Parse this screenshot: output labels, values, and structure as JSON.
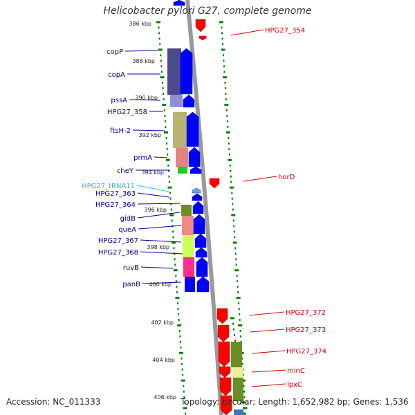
{
  "title": "Helicobacter pylori G27, complete genome",
  "footer": {
    "accession": "Accession: NC_011333",
    "topology": "Topology: circular; Length: 1,652,982 bp; Genes: 1,536"
  },
  "colors": {
    "plus_strand_arrow": "#0000ff",
    "minus_strand_arrow": "#ff0000",
    "trna_arrow": "#55aaff",
    "plus_label": "#00008b",
    "minus_label": "#cc0000",
    "trna_label": "#33bbee",
    "backbone": "#999999",
    "tick": "#008000"
  },
  "kbp_ticks": [
    "386 kbp",
    "388 kbp",
    "390 kbp",
    "392 kbp",
    "394 kbp",
    "396 kbp",
    "398 kbp",
    "400 kbp",
    "402 kbp",
    "404 kbp",
    "406 kbp"
  ],
  "plus_strand_genes": [
    "copP",
    "copA",
    "pssA",
    "HPG27_358",
    "ftsH-2",
    "prmA",
    "cheY",
    "HPG27_363",
    "HPG27_364",
    "gidB",
    "queA",
    "HPG27_367",
    "HPG27_368",
    "ruvB",
    "panB"
  ],
  "trna_genes": [
    "HPG27_tRNA11"
  ],
  "minus_strand_genes": [
    "HPG27_354",
    "horD",
    "HPG27_372",
    "HPG27_373",
    "HPG27_374",
    "minC",
    "lpxC"
  ]
}
